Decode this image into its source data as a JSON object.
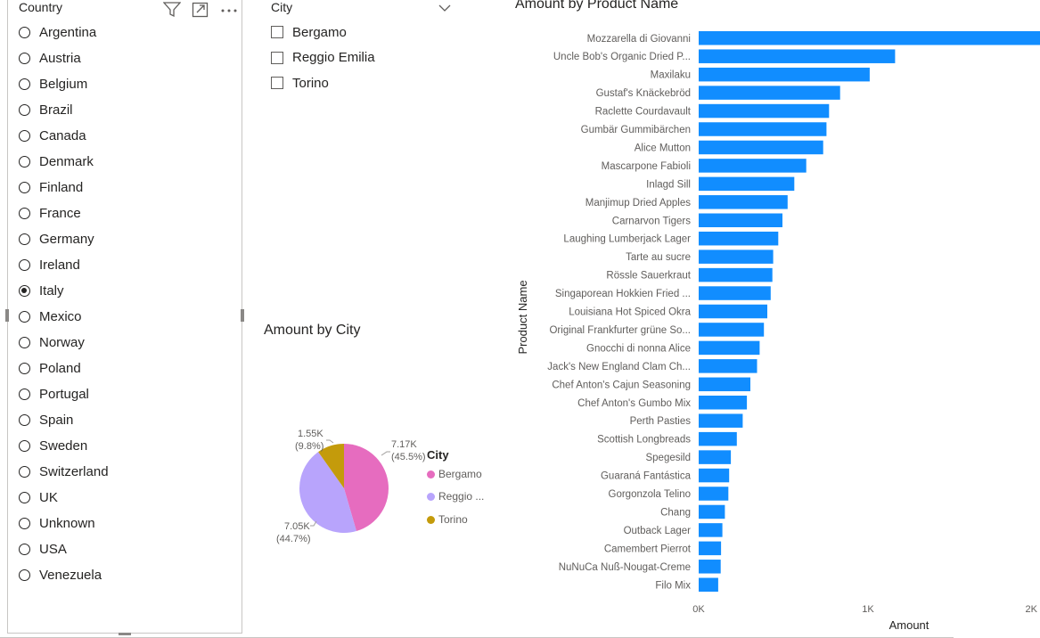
{
  "country_slicer": {
    "header": "Country",
    "options": [
      "Argentina",
      "Austria",
      "Belgium",
      "Brazil",
      "Canada",
      "Denmark",
      "Finland",
      "France",
      "Germany",
      "Ireland",
      "Italy",
      "Mexico",
      "Norway",
      "Poland",
      "Portugal",
      "Spain",
      "Sweden",
      "Switzerland",
      "UK",
      "Unknown",
      "USA",
      "Venezuela"
    ],
    "selected": "Italy",
    "icons": [
      "filter-icon",
      "focus-mode-icon",
      "more-options-icon"
    ]
  },
  "city_slicer": {
    "header": "City",
    "options": [
      "Bergamo",
      "Reggio Emilia",
      "Torino"
    ]
  },
  "pie": {
    "title": "Amount by City",
    "legend_title": "City",
    "legend": [
      "Bergamo",
      "Reggio ...",
      "Torino"
    ],
    "colors": [
      "#e66cbf",
      "#b8a4fc",
      "#c49b0b"
    ],
    "labels": {
      "bergamo": [
        "7.17K",
        "(45.5%)"
      ],
      "reggio": [
        "7.05K",
        "(44.7%)"
      ],
      "torino": [
        "1.55K",
        "(9.8%)"
      ]
    }
  },
  "chart_data": {
    "type": "bar",
    "orientation": "horizontal",
    "title": "Amount by Product Name",
    "xlabel": "Amount",
    "ylabel": "Product Name",
    "xlim": [
      0,
      2000
    ],
    "xticks": [
      "0K",
      "1K",
      "2K"
    ],
    "bar_color": "#118dff",
    "categories": [
      "Mozzarella di Giovanni",
      "Uncle Bob's Organic Dried P...",
      "Maxilaku",
      "Gustaf's Knäckebröd",
      "Raclette Courdavault",
      "Gumbär Gummibärchen",
      "Alice Mutton",
      "Mascarpone Fabioli",
      "Inlagd Sill",
      "Manjimup Dried Apples",
      "Carnarvon Tigers",
      "Laughing Lumberjack Lager",
      "Tarte au sucre",
      "Rössle Sauerkraut",
      "Singaporean Hokkien Fried ...",
      "Louisiana Hot Spiced Okra",
      "Original Frankfurter grüne So...",
      "Gnocchi di nonna Alice",
      "Jack's New England Clam Ch...",
      "Chef Anton's Cajun Seasoning",
      "Chef Anton's Gumbo Mix",
      "Perth Pasties",
      "Scottish Longbreads",
      "Spegesild",
      "Guaraná Fantástica",
      "Gorgonzola Telino",
      "Chang",
      "Outback Lager",
      "Camembert Pierrot",
      "NuNuCa Nuß-Nougat-Creme",
      "Filo Mix"
    ],
    "values": [
      2020,
      1160,
      1010,
      835,
      770,
      755,
      735,
      635,
      565,
      525,
      495,
      470,
      440,
      435,
      425,
      405,
      385,
      360,
      345,
      305,
      285,
      260,
      225,
      190,
      180,
      175,
      155,
      140,
      132,
      130,
      115
    ]
  }
}
